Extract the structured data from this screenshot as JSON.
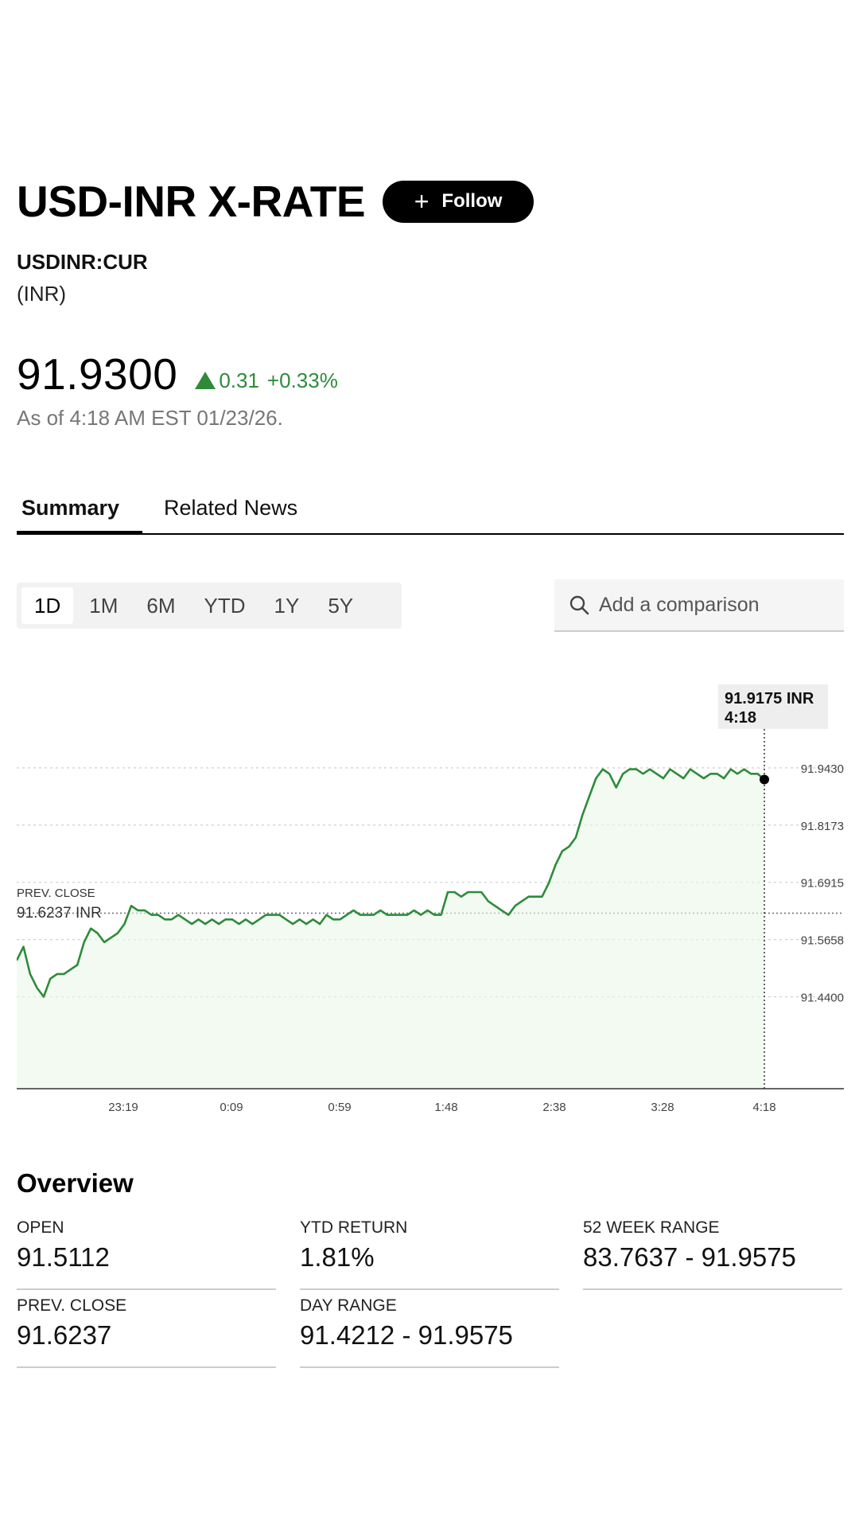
{
  "header": {
    "title": "USD-INR X-RATE",
    "follow_label": "Follow",
    "ticker": "USDINR:CUR",
    "currency": "(INR)"
  },
  "quote": {
    "price": "91.9300",
    "change": "0.31",
    "change_pct": "+0.33%",
    "as_of": "As of 4:18 AM EST 01/23/26.",
    "up_color": "#2e8b3a"
  },
  "tabs": [
    {
      "label": "Summary",
      "active": true
    },
    {
      "label": "Related News",
      "active": false
    }
  ],
  "ranges": [
    {
      "label": "1D",
      "active": true
    },
    {
      "label": "1M"
    },
    {
      "label": "6M"
    },
    {
      "label": "YTD"
    },
    {
      "label": "1Y"
    },
    {
      "label": "5Y"
    }
  ],
  "compare": {
    "placeholder": "Add a comparison",
    "icon": "search-icon"
  },
  "chart": {
    "tooltip_value": "91.9175 INR",
    "tooltip_time": "4:18",
    "prev_close_label": "PREV. CLOSE",
    "prev_close_value": "91.6237 INR"
  },
  "chart_data": {
    "type": "line",
    "title": "",
    "xlabel": "",
    "ylabel": "",
    "x_ticks": [
      "23:19",
      "0:09",
      "0:59",
      "1:48",
      "2:38",
      "3:28",
      "4:18"
    ],
    "y_ticks": [
      "91.9430",
      "91.8173",
      "91.6915",
      "91.5658",
      "91.4400"
    ],
    "y_tick_values": [
      91.943,
      91.8173,
      91.6915,
      91.5658,
      91.44
    ],
    "ylim": [
      91.35,
      91.99
    ],
    "prev_close": 91.6237,
    "line_color": "#2e8b3a",
    "grid": true,
    "series": [
      {
        "values": [
          91.52,
          91.55,
          91.49,
          91.46,
          91.44,
          91.48,
          91.49,
          91.49,
          91.5,
          91.51,
          91.56,
          91.59,
          91.58,
          91.56,
          91.57,
          91.58,
          91.6,
          91.64,
          91.63,
          91.63,
          91.62,
          91.62,
          91.61,
          91.61,
          91.62,
          91.61,
          91.6,
          91.61,
          91.6,
          91.61,
          91.6,
          91.61,
          91.61,
          91.6,
          91.61,
          91.6,
          91.61,
          91.62,
          91.62,
          91.62,
          91.61,
          91.6,
          91.61,
          91.6,
          91.61,
          91.6,
          91.62,
          91.61,
          91.61,
          91.62,
          91.63,
          91.62,
          91.62,
          91.62,
          91.63,
          91.62,
          91.62,
          91.62,
          91.62,
          91.63,
          91.62,
          91.63,
          91.62,
          91.62,
          91.67,
          91.67,
          91.66,
          91.67,
          91.67,
          91.67,
          91.65,
          91.64,
          91.63,
          91.62,
          91.64,
          91.65,
          91.66,
          91.66,
          91.66,
          91.69,
          91.73,
          91.76,
          91.77,
          91.79,
          91.84,
          91.88,
          91.92,
          91.94,
          91.93,
          91.9,
          91.93,
          91.94,
          91.94,
          91.93,
          91.94,
          91.93,
          91.92,
          91.94,
          91.93,
          91.92,
          91.94,
          91.93,
          91.92,
          91.93,
          91.93,
          91.92,
          91.94,
          91.93,
          91.94,
          91.93,
          91.93,
          91.9175
        ]
      }
    ]
  },
  "overview": {
    "title": "Overview",
    "stats": [
      {
        "label": "OPEN",
        "value": "91.5112"
      },
      {
        "label": "YTD RETURN",
        "value": "1.81%"
      },
      {
        "label": "52 WEEK RANGE",
        "value": "83.7637 - 91.9575"
      },
      {
        "label": "PREV. CLOSE",
        "value": "91.6237"
      },
      {
        "label": "DAY RANGE",
        "value": "91.4212 - 91.9575"
      }
    ]
  }
}
